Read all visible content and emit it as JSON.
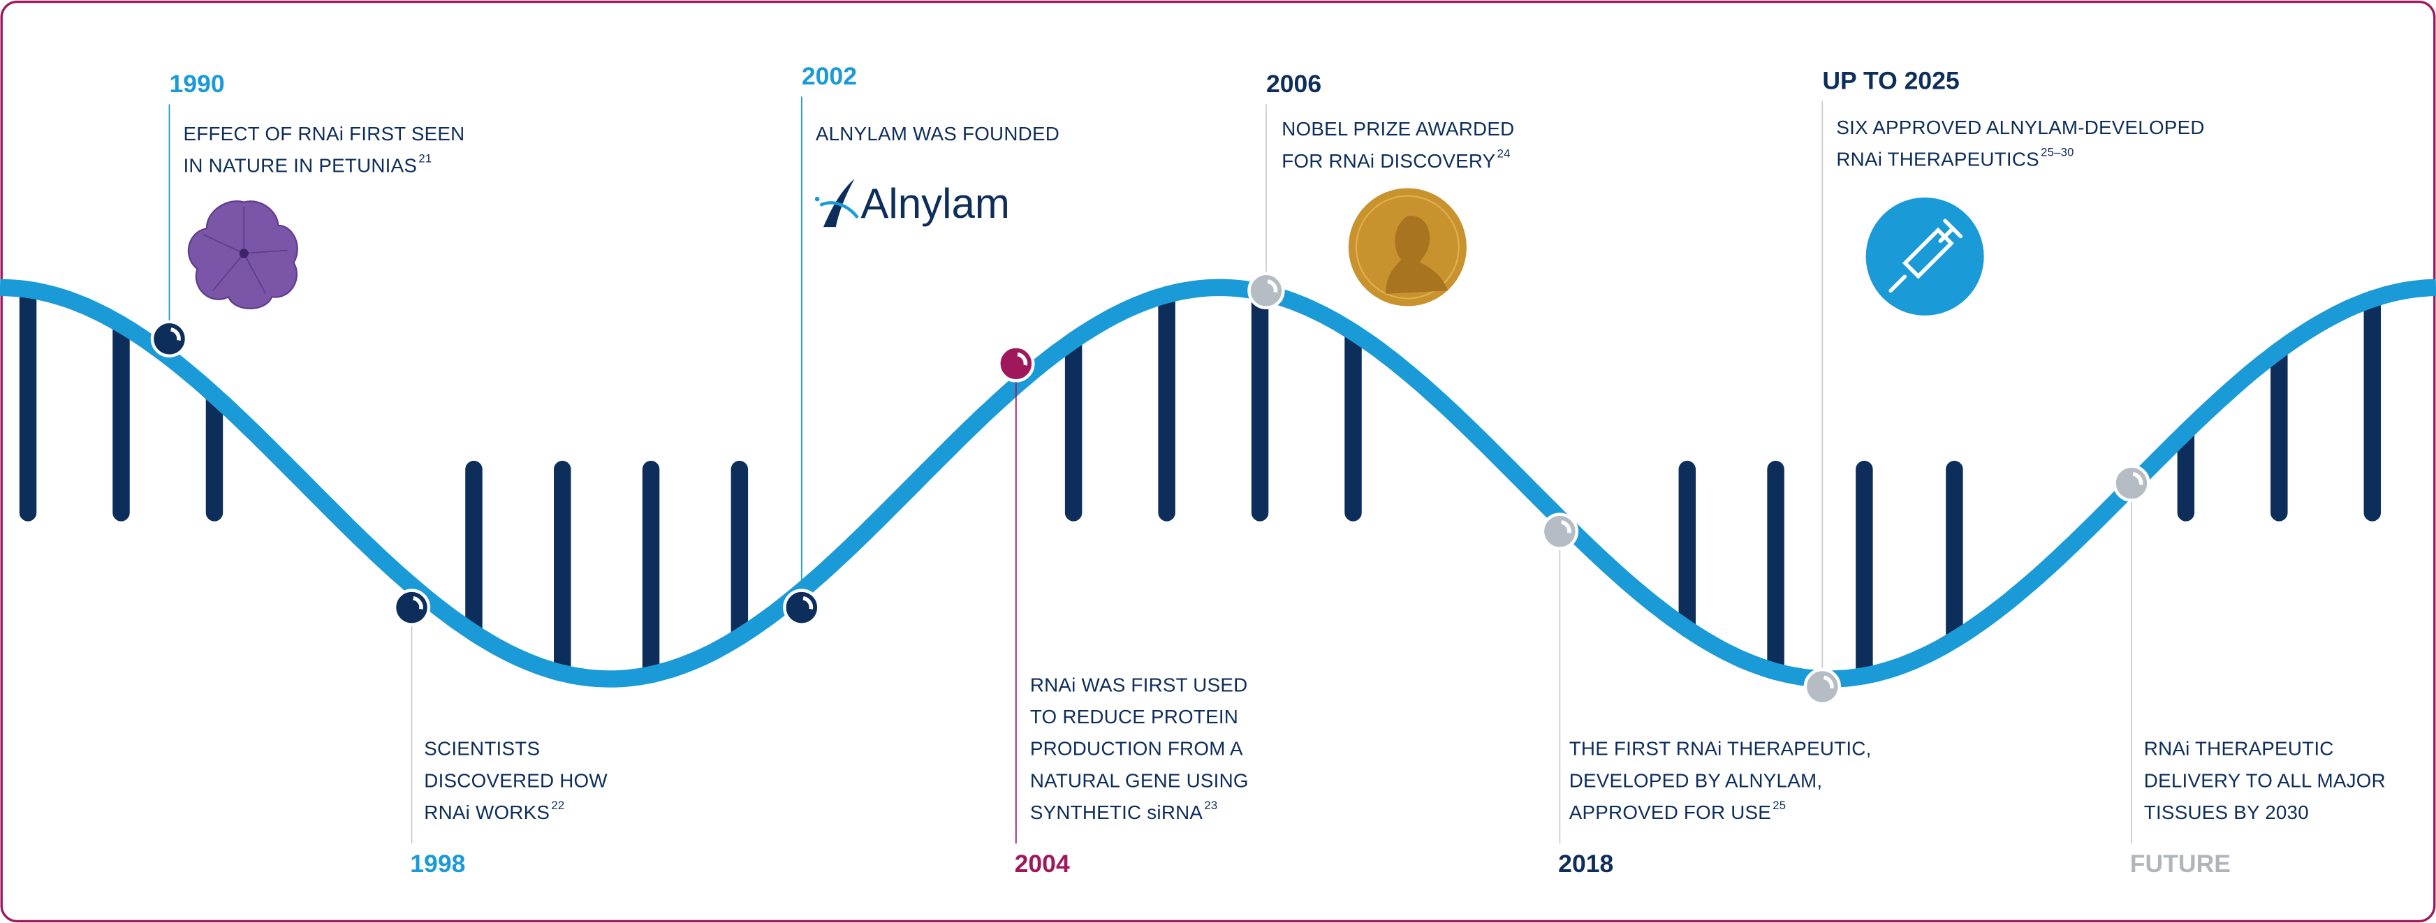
{
  "events": [
    {
      "year": "1990",
      "color": "#1a9ad6",
      "lines": [
        "EFFECT OF RNAi FIRST SEEN",
        "IN NATURE IN PETUNIAS"
      ],
      "ref": "21"
    },
    {
      "year": "1998",
      "color": "#1a9ad6",
      "lines": [
        "SCIENTISTS",
        "DISCOVERED HOW",
        "RNAi WORKS"
      ],
      "ref": "22"
    },
    {
      "year": "2002",
      "color": "#1a9ad6",
      "lines": [
        "ALNYLAM WAS FOUNDED"
      ],
      "logo": "Alnylam"
    },
    {
      "year": "2004",
      "color": "#a0185c",
      "lines": [
        "RNAi WAS FIRST USED",
        "TO REDUCE PROTEIN",
        "PRODUCTION FROM A",
        "NATURAL GENE USING",
        "SYNTHETIC siRNA"
      ],
      "ref": "23"
    },
    {
      "year": "2006",
      "color": "#0d2d5a",
      "lines": [
        "NOBEL PRIZE AWARDED",
        "FOR RNAi DISCOVERY"
      ],
      "ref": "24"
    },
    {
      "year": "2018",
      "color": "#0d2d5a",
      "lines": [
        "THE FIRST RNAi THERAPEUTIC,",
        "DEVELOPED BY ALNYLAM,",
        "APPROVED FOR USE"
      ],
      "ref": "25"
    },
    {
      "year": "UP TO 2025",
      "color": "#0d2d5a",
      "lines": [
        "SIX APPROVED ALNYLAM-DEVELOPED",
        "RNAi THERAPEUTICS"
      ],
      "ref": "25–30"
    },
    {
      "year": "FUTURE",
      "color": "#b0b5bb",
      "lines": [
        "RNAi THERAPEUTIC",
        "DELIVERY TO ALL MAJOR",
        "TISSUES BY 2030"
      ]
    }
  ]
}
